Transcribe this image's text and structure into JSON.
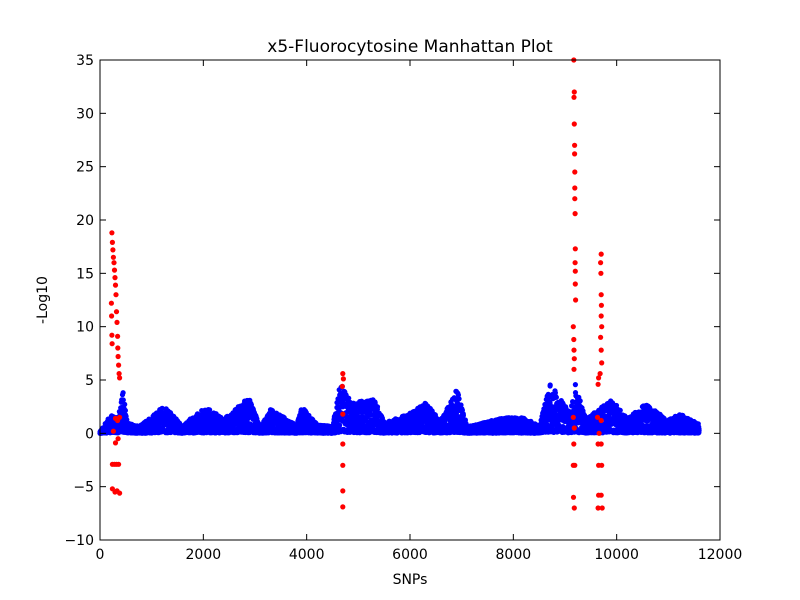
{
  "chart_data": {
    "type": "scatter",
    "title": "x5-Fluorocytosine Manhattan Plot",
    "xlabel": "SNPs",
    "ylabel": "-Log10",
    "xlim": [
      0,
      12000
    ],
    "ylim": [
      -10,
      35
    ],
    "x_ticks": [
      "0",
      "2000",
      "4000",
      "6000",
      "8000",
      "10000",
      "12000"
    ],
    "y_ticks": [
      "−10",
      "−5",
      "0",
      "5",
      "10",
      "15",
      "20",
      "25",
      "30",
      "35"
    ],
    "grid": false,
    "legend": "none",
    "series_colors": {
      "baseline": "#0000ff",
      "significant": "#ff0000"
    },
    "baseline_profile": [
      {
        "x": 0,
        "y": 0.2
      },
      {
        "x": 200,
        "y": 1.6
      },
      {
        "x": 350,
        "y": 1.5
      },
      {
        "x": 450,
        "y": 3.9
      },
      {
        "x": 520,
        "y": 1.0
      },
      {
        "x": 750,
        "y": 0.6
      },
      {
        "x": 1250,
        "y": 2.5
      },
      {
        "x": 1600,
        "y": 0.6
      },
      {
        "x": 1900,
        "y": 2.0
      },
      {
        "x": 2100,
        "y": 2.2
      },
      {
        "x": 2400,
        "y": 1.3
      },
      {
        "x": 2880,
        "y": 3.2
      },
      {
        "x": 3100,
        "y": 0.5
      },
      {
        "x": 3300,
        "y": 2.2
      },
      {
        "x": 3800,
        "y": 0.7
      },
      {
        "x": 3900,
        "y": 2.4
      },
      {
        "x": 4200,
        "y": 0.8
      },
      {
        "x": 4500,
        "y": 0.6
      },
      {
        "x": 4650,
        "y": 4.6
      },
      {
        "x": 4850,
        "y": 2.8
      },
      {
        "x": 5300,
        "y": 3.0
      },
      {
        "x": 5500,
        "y": 1.0
      },
      {
        "x": 5900,
        "y": 1.6
      },
      {
        "x": 6300,
        "y": 2.7
      },
      {
        "x": 6600,
        "y": 1.2
      },
      {
        "x": 6900,
        "y": 4.0
      },
      {
        "x": 7100,
        "y": 0.6
      },
      {
        "x": 7800,
        "y": 1.4
      },
      {
        "x": 8200,
        "y": 1.4
      },
      {
        "x": 8500,
        "y": 0.7
      },
      {
        "x": 8700,
        "y": 4.5
      },
      {
        "x": 9100,
        "y": 1.8
      },
      {
        "x": 9200,
        "y": 4.5
      },
      {
        "x": 9400,
        "y": 1.3
      },
      {
        "x": 9900,
        "y": 3.0
      },
      {
        "x": 10200,
        "y": 1.3
      },
      {
        "x": 10550,
        "y": 2.6
      },
      {
        "x": 11000,
        "y": 1.2
      },
      {
        "x": 11200,
        "y": 1.8
      },
      {
        "x": 11600,
        "y": 0.8
      }
    ],
    "significant_points": [
      {
        "x": 230,
        "y": 18.8
      },
      {
        "x": 240,
        "y": 17.9
      },
      {
        "x": 250,
        "y": 17.2
      },
      {
        "x": 260,
        "y": 16.5
      },
      {
        "x": 270,
        "y": 16.0
      },
      {
        "x": 280,
        "y": 15.3
      },
      {
        "x": 290,
        "y": 14.6
      },
      {
        "x": 300,
        "y": 13.9
      },
      {
        "x": 220,
        "y": 12.2
      },
      {
        "x": 225,
        "y": 11.0
      },
      {
        "x": 230,
        "y": 9.2
      },
      {
        "x": 235,
        "y": 8.4
      },
      {
        "x": 310,
        "y": 13.0
      },
      {
        "x": 320,
        "y": 11.4
      },
      {
        "x": 330,
        "y": 10.4
      },
      {
        "x": 340,
        "y": 9.1
      },
      {
        "x": 345,
        "y": 8.0
      },
      {
        "x": 350,
        "y": 7.2
      },
      {
        "x": 360,
        "y": 6.4
      },
      {
        "x": 370,
        "y": 5.6
      },
      {
        "x": 380,
        "y": 5.2
      },
      {
        "x": 300,
        "y": 1.4
      },
      {
        "x": 340,
        "y": 1.2
      },
      {
        "x": 380,
        "y": 1.5
      },
      {
        "x": 260,
        "y": 0.2
      },
      {
        "x": 300,
        "y": -0.9
      },
      {
        "x": 350,
        "y": -0.5
      },
      {
        "x": 240,
        "y": -2.9
      },
      {
        "x": 280,
        "y": -2.9
      },
      {
        "x": 320,
        "y": -2.9
      },
      {
        "x": 360,
        "y": -2.9
      },
      {
        "x": 240,
        "y": -5.2
      },
      {
        "x": 290,
        "y": -5.5
      },
      {
        "x": 330,
        "y": -5.4
      },
      {
        "x": 380,
        "y": -5.6
      },
      {
        "x": 4700,
        "y": 5.6
      },
      {
        "x": 4710,
        "y": 5.1
      },
      {
        "x": 4690,
        "y": 4.4
      },
      {
        "x": 4700,
        "y": 1.8
      },
      {
        "x": 4700,
        "y": -1.0
      },
      {
        "x": 4700,
        "y": -3.0
      },
      {
        "x": 4700,
        "y": -5.4
      },
      {
        "x": 4700,
        "y": -6.9
      },
      {
        "x": 9170,
        "y": 35.0
      },
      {
        "x": 9180,
        "y": 32.0
      },
      {
        "x": 9175,
        "y": 31.5
      },
      {
        "x": 9180,
        "y": 29.0
      },
      {
        "x": 9185,
        "y": 27.0
      },
      {
        "x": 9185,
        "y": 26.2
      },
      {
        "x": 9190,
        "y": 24.5
      },
      {
        "x": 9190,
        "y": 23.0
      },
      {
        "x": 9190,
        "y": 22.0
      },
      {
        "x": 9195,
        "y": 20.6
      },
      {
        "x": 9200,
        "y": 17.3
      },
      {
        "x": 9195,
        "y": 16.0
      },
      {
        "x": 9200,
        "y": 15.2
      },
      {
        "x": 9200,
        "y": 14.0
      },
      {
        "x": 9205,
        "y": 12.5
      },
      {
        "x": 9160,
        "y": 10.0
      },
      {
        "x": 9170,
        "y": 8.8
      },
      {
        "x": 9175,
        "y": 7.8
      },
      {
        "x": 9180,
        "y": 7.0
      },
      {
        "x": 9175,
        "y": 6.0
      },
      {
        "x": 9160,
        "y": 1.5
      },
      {
        "x": 9180,
        "y": 0.5
      },
      {
        "x": 9170,
        "y": -1.0
      },
      {
        "x": 9160,
        "y": -3.0
      },
      {
        "x": 9190,
        "y": -3.0
      },
      {
        "x": 9165,
        "y": -6.0
      },
      {
        "x": 9180,
        "y": -7.0
      },
      {
        "x": 9700,
        "y": 16.8
      },
      {
        "x": 9690,
        "y": 16.0
      },
      {
        "x": 9695,
        "y": 15.0
      },
      {
        "x": 9700,
        "y": 13.0
      },
      {
        "x": 9705,
        "y": 12.0
      },
      {
        "x": 9700,
        "y": 11.0
      },
      {
        "x": 9710,
        "y": 10.0
      },
      {
        "x": 9690,
        "y": 9.0
      },
      {
        "x": 9700,
        "y": 7.8
      },
      {
        "x": 9710,
        "y": 6.6
      },
      {
        "x": 9680,
        "y": 5.6
      },
      {
        "x": 9650,
        "y": 5.2
      },
      {
        "x": 9640,
        "y": 4.6
      },
      {
        "x": 9630,
        "y": 1.5
      },
      {
        "x": 9700,
        "y": 1.2
      },
      {
        "x": 9660,
        "y": 0.0
      },
      {
        "x": 9640,
        "y": -1.0
      },
      {
        "x": 9700,
        "y": -1.0
      },
      {
        "x": 9650,
        "y": -3.0
      },
      {
        "x": 9710,
        "y": -3.0
      },
      {
        "x": 9650,
        "y": -5.8
      },
      {
        "x": 9700,
        "y": -5.8
      },
      {
        "x": 9640,
        "y": -7.0
      },
      {
        "x": 9720,
        "y": -7.0
      }
    ]
  }
}
